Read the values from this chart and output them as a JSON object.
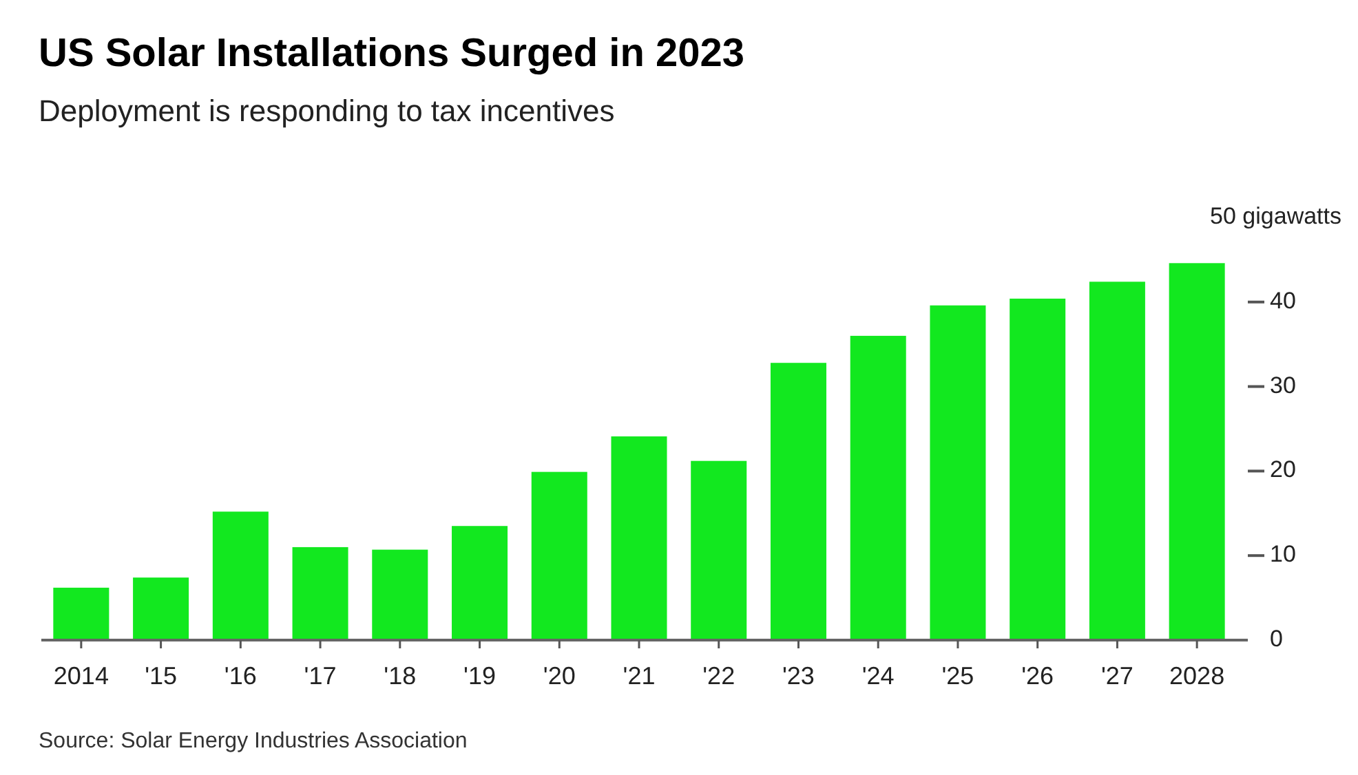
{
  "chart_data": {
    "type": "bar",
    "title": "US Solar Installations Surged in 2023",
    "subtitle": "Deployment is responding to tax incentives",
    "categories": [
      "2014",
      "'15",
      "'16",
      "'17",
      "'18",
      "'19",
      "'20",
      "'21",
      "'22",
      "'23",
      "'24",
      "'25",
      "'26",
      "'27",
      "2028"
    ],
    "values": [
      6.2,
      7.4,
      15.2,
      11.0,
      10.7,
      13.5,
      19.9,
      24.1,
      21.2,
      32.8,
      36.0,
      39.6,
      40.4,
      42.4,
      44.6
    ],
    "color": "#12e81f",
    "ylim": [
      0,
      50
    ],
    "yticks": [
      0,
      10,
      20,
      30,
      40,
      {
        "value": 50,
        "label": "50 gigawatts"
      }
    ],
    "annotations": [
      "Source: Solar Energy Industries Association"
    ]
  }
}
